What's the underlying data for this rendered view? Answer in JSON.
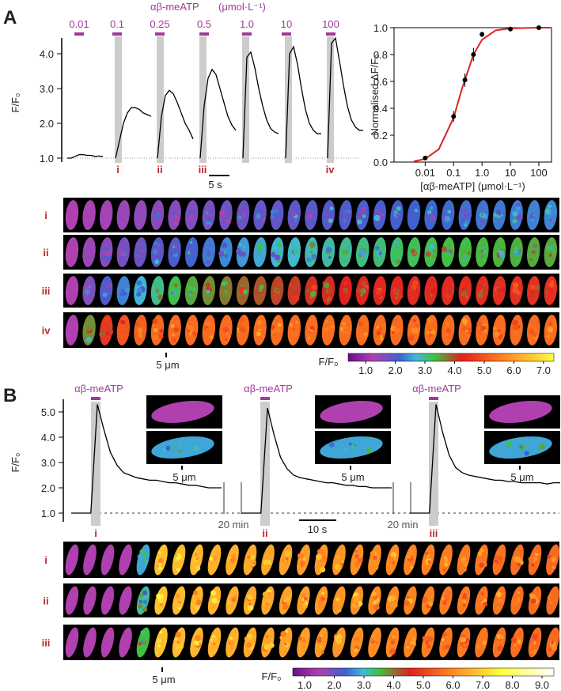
{
  "panel_a": {
    "label": "A",
    "agonist_label": "αβ-meATP",
    "unit_label": "(μmol·L⁻¹)",
    "concentrations": [
      "0.01",
      "0.1",
      "0.25",
      "0.5",
      "1.0",
      "10",
      "100"
    ],
    "y_label": "F/F₀",
    "ylim": [
      0.8,
      4.6
    ],
    "yticks": [
      {
        "value": 1,
        "label": "1.0"
      },
      {
        "value": 2,
        "label": "2.0"
      },
      {
        "value": 3,
        "label": "3.0"
      },
      {
        "value": 4,
        "label": "4.0"
      }
    ],
    "traces": [
      [
        1.0,
        1.0,
        1.05,
        1.1,
        1.1,
        1.08,
        1.08,
        1.05,
        1.06,
        1.05
      ],
      [
        1.0,
        1.5,
        2.0,
        2.3,
        2.45,
        2.45,
        2.4,
        2.3,
        2.25,
        2.2
      ],
      [
        1.0,
        2.2,
        2.8,
        2.95,
        2.85,
        2.6,
        2.3,
        2.0,
        1.8,
        1.55
      ],
      [
        1.0,
        2.5,
        3.3,
        3.55,
        3.4,
        3.0,
        2.6,
        2.2,
        1.95,
        1.8
      ],
      [
        1.0,
        3.9,
        4.05,
        3.6,
        3.0,
        2.5,
        2.1,
        1.85,
        1.75,
        1.7
      ],
      [
        1.0,
        4.0,
        4.2,
        3.7,
        3.0,
        2.4,
        2.0,
        1.8,
        1.7,
        1.7
      ],
      [
        1.0,
        4.3,
        4.45,
        3.8,
        3.1,
        2.5,
        2.1,
        1.9,
        1.8,
        1.8
      ]
    ],
    "trace_markers": [
      null,
      "i",
      "ii",
      "iii",
      null,
      null,
      "iv"
    ],
    "scale_bar": "5 s",
    "dose_response": {
      "type": "scatter",
      "x": [
        0.01,
        0.1,
        0.25,
        0.5,
        1.0,
        10,
        100
      ],
      "y": [
        0.03,
        0.34,
        0.61,
        0.8,
        0.95,
        0.99,
        1.0
      ],
      "errors": [
        0.01,
        0.04,
        0.05,
        0.05,
        0.02,
        0.01,
        0.01
      ],
      "fit": {
        "x": [
          0.004,
          0.01,
          0.03,
          0.1,
          0.2,
          0.5,
          1,
          3,
          10,
          100,
          250
        ],
        "y": [
          0.005,
          0.024,
          0.095,
          0.33,
          0.55,
          0.8,
          0.91,
          0.98,
          0.995,
          1.0,
          1.0
        ],
        "color": "#e02020"
      },
      "x_label": "[αβ-meATP]  (μmol·L⁻¹)",
      "y_label": "Normalised ΔF/F₀",
      "log_x": true,
      "xlim": [
        0.0008,
        280
      ],
      "ylim": [
        0,
        1
      ],
      "xticks": [
        0.01,
        0.1,
        {
          "value": 1,
          "label": "1.0"
        },
        10,
        100
      ],
      "yticks": [
        {
          "value": 0,
          "label": "0.0"
        },
        0.2,
        0.4,
        0.6,
        0.8,
        {
          "value": 1,
          "label": "1.0"
        }
      ]
    },
    "image_rows": [
      "i",
      "ii",
      "iii",
      "iv"
    ],
    "image_scale": "5 μm",
    "colorbar": {
      "label": "F/F₀",
      "range": [
        0.41,
        7.35
      ],
      "ticks": [
        {
          "value": 1,
          "label": "1.0"
        },
        {
          "value": 2,
          "label": "2.0"
        },
        {
          "value": 3,
          "label": "3.0"
        },
        {
          "value": 4,
          "label": "4.0"
        },
        {
          "value": 5,
          "label": "5.0"
        },
        {
          "value": 6,
          "label": "6.0"
        },
        {
          "value": 7,
          "label": "7.0"
        }
      ]
    }
  },
  "panel_b": {
    "label": "B",
    "agonist_labels": [
      "αβ-meATP",
      "αβ-meATP",
      "αβ-meATP"
    ],
    "y_label": "F/F₀",
    "ylim": [
      0.5,
      5.9
    ],
    "yticks": [
      {
        "value": 1,
        "label": "1.0"
      },
      {
        "value": 2,
        "label": "2.0"
      },
      {
        "value": 3,
        "label": "3.0"
      },
      {
        "value": 4,
        "label": "4.0"
      },
      {
        "value": 5,
        "label": "5.0"
      }
    ],
    "traces": [
      [
        1,
        1,
        1,
        1,
        5.3,
        4.3,
        3.4,
        2.9,
        2.6,
        2.5,
        2.4,
        2.35,
        2.3,
        2.3,
        2.25,
        2.2,
        2.2,
        2.15,
        2.1,
        2.1,
        2.05,
        2.0,
        2.0,
        2.0
      ],
      [
        1,
        1,
        1,
        1,
        5.15,
        4.1,
        3.2,
        2.75,
        2.5,
        2.4,
        2.35,
        2.3,
        2.25,
        2.2,
        2.2,
        2.15,
        2.1,
        2.1,
        2.05,
        2.05,
        2.0,
        2.0,
        2.0,
        2.0
      ],
      [
        1,
        1,
        1,
        1,
        5.3,
        4.2,
        3.3,
        2.8,
        2.6,
        2.5,
        2.45,
        2.4,
        2.35,
        2.3,
        2.3,
        2.25,
        2.25,
        2.2,
        2.2,
        2.2,
        2.2,
        2.15,
        2.2,
        2.2
      ]
    ],
    "trace_markers": [
      "i",
      "ii",
      "iii"
    ],
    "gaps": [
      "20 min",
      "20 min"
    ],
    "scale_bar": "10 s",
    "inset_scale": [
      "5 μm",
      "5 μm",
      "5 μm"
    ],
    "image_rows": [
      "i",
      "ii",
      "iii"
    ],
    "image_scale": "5 μm",
    "colorbar": {
      "label": "F/F₀",
      "range": [
        0.6,
        9.4
      ],
      "ticks": [
        {
          "value": 1,
          "label": "1.0"
        },
        {
          "value": 2,
          "label": "2.0"
        },
        {
          "value": 3,
          "label": "3.0"
        },
        {
          "value": 4,
          "label": "4.0"
        },
        {
          "value": 5,
          "label": "5.0"
        },
        {
          "value": 6,
          "label": "6.0"
        },
        {
          "value": 7,
          "label": "7.0"
        },
        {
          "value": 8,
          "label": "8.0"
        },
        {
          "value": 9,
          "label": "9.0"
        }
      ]
    }
  }
}
